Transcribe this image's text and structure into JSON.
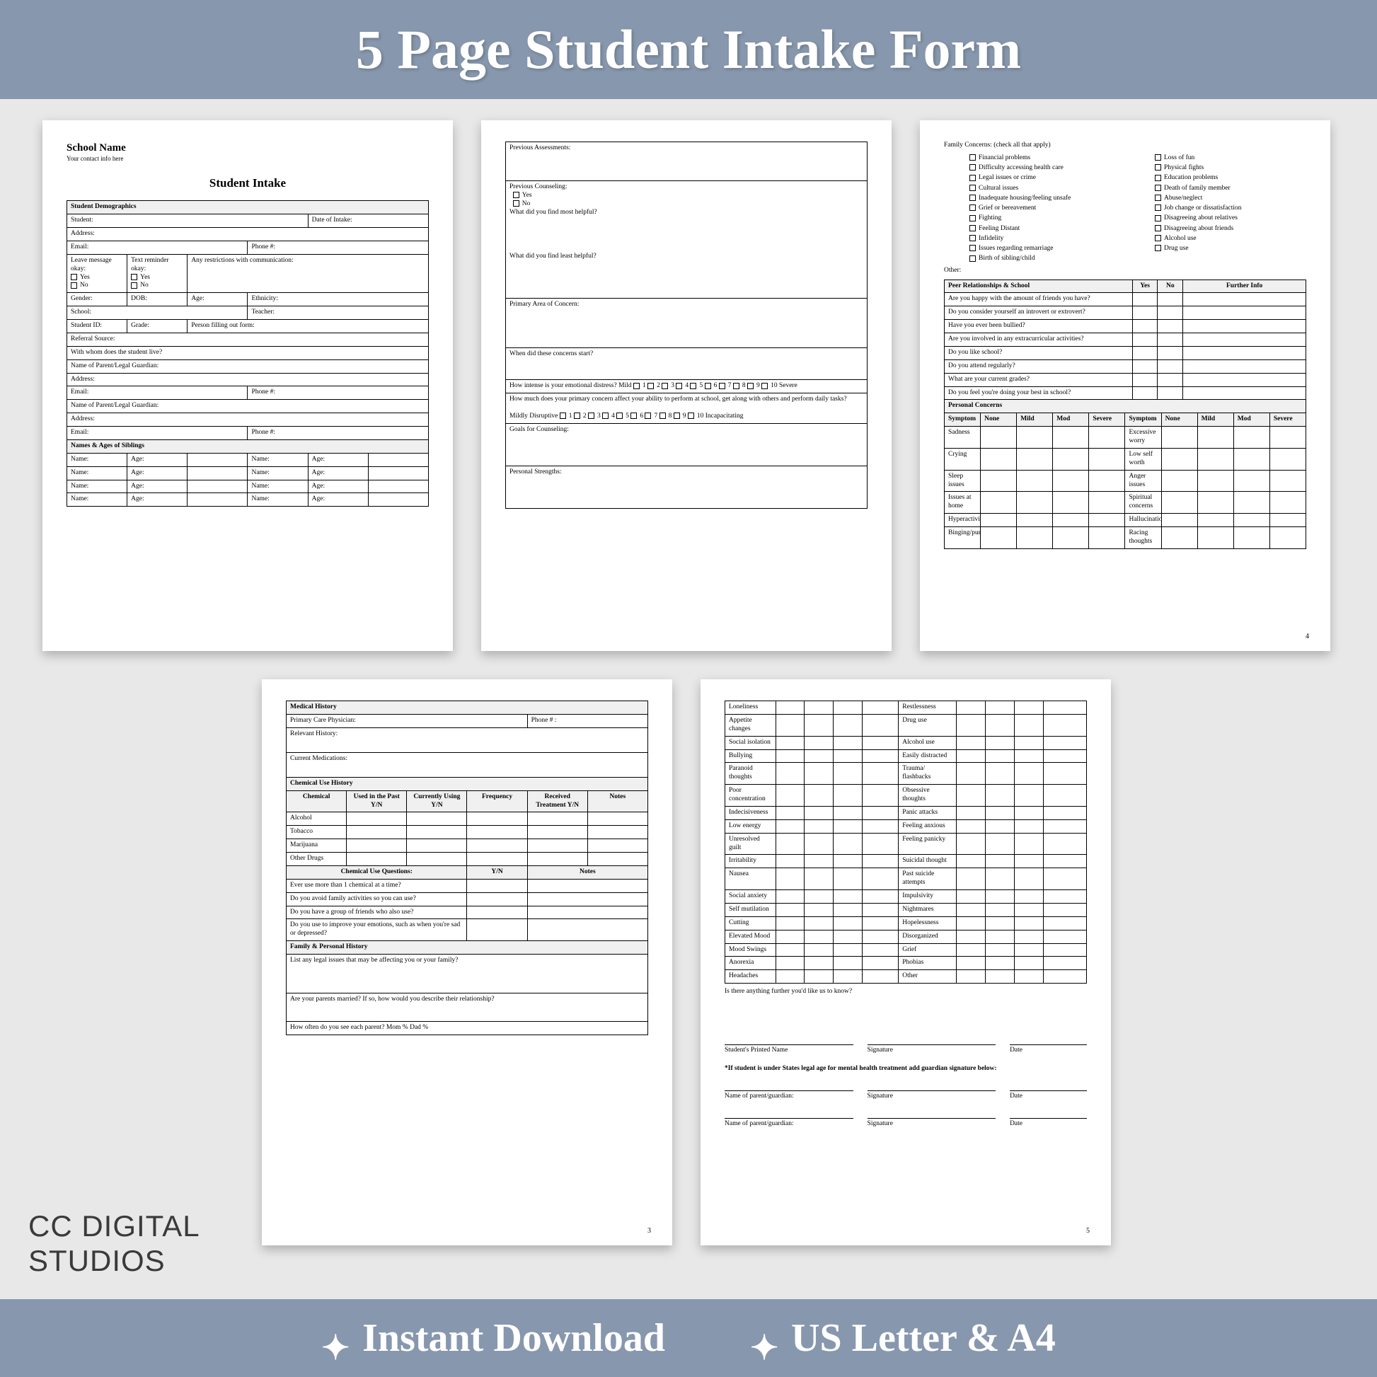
{
  "banner": {
    "top": "5 Page Student Intake Form",
    "bottom_left": "Instant Download",
    "bottom_right": "US Letter & A4",
    "bg": "#8797ad",
    "fg": "#ffffff"
  },
  "brand": {
    "line1": "CC DIGITAL",
    "line2": "STUDIOS"
  },
  "workspace_bg": "#e8e8e8",
  "page1": {
    "school": "School Name",
    "contact": "Your contact info here",
    "title": "Student Intake",
    "section_demo": "Student Demographics",
    "f_student": "Student:",
    "f_doi": "Date of Intake:",
    "f_address": "Address:",
    "f_email": "Email:",
    "f_phone": "Phone #:",
    "f_leave": "Leave message okay:",
    "f_text": "Text reminder okay:",
    "f_restrict": "Any restrictions with communication:",
    "yes": "Yes",
    "no": "No",
    "f_gender": "Gender:",
    "f_dob": "DOB:",
    "f_age": "Age:",
    "f_eth": "Ethnicity:",
    "f_school": "School:",
    "f_teacher": "Teacher:",
    "f_sid": "Student ID:",
    "f_grade": "Grade:",
    "f_filler": "Person filling out form:",
    "f_refsrc": "Referral Source:",
    "f_livewith": "With whom does the student live?",
    "f_guardian": "Name of Parent/Legal Guardian:",
    "section_sibs": "Names & Ages of Siblings",
    "f_name": "Name:"
  },
  "page2": {
    "f_prev_assess": "Previous Assessments:",
    "f_prev_couns": "Previous Counseling:",
    "yes": "Yes",
    "no": "No",
    "f_most": "What did you find most helpful?",
    "f_least": "What did you find least helpful?",
    "f_primary": "Primary Area of Concern:",
    "f_when": "When did these concerns start?",
    "f_intensity": "How intense is your emotional distress?  Mild",
    "f_severe": "Severe",
    "f_affect": "How much does your primary concern affect your ability to perform at school, get along with others and perform daily tasks?",
    "f_mild_dis": "Mildly Disruptive",
    "f_incap": "Incapacitating",
    "f_goals": "Goals for Counseling:",
    "f_strengths": "Personal Strengths:",
    "scale": [
      "1",
      "2",
      "3",
      "4",
      "5",
      "6",
      "7",
      "8",
      "9",
      "10"
    ]
  },
  "page3": {
    "f_family": "Family Concerns: (check all that apply)",
    "col1": [
      "Financial problems",
      "Difficulty accessing health care",
      "Legal issues or crime",
      "Cultural issues",
      "Inadequate housing/feeling unsafe",
      "Grief or bereavement",
      "Fighting",
      "Feeling Distant",
      "Infidelity",
      "Issues regarding remarriage",
      "Birth of sibling/child"
    ],
    "col2": [
      "Loss of fun",
      "Physical fights",
      "Education problems",
      "Death of family member",
      "Abuse/neglect",
      "Job change or dissatisfaction",
      "Disagreeing about relatives",
      "Disagreeing about friends",
      "Alcohol use",
      "Drug use"
    ],
    "other": "Other:",
    "sect_peer": "Peer Relationships & School",
    "h_yes": "Yes",
    "h_no": "No",
    "h_info": "Further Info",
    "peer_qs": [
      "Are you happy with the amount of friends you have?",
      "Do you consider yourself an introvert or extrovert?",
      "Have you ever been bullied?",
      "Are you involved in any extracurricular activities?",
      "Do you like school?",
      "Do you attend regularly?",
      "What are your current grades?",
      "Do you feel you're doing your best in school?"
    ],
    "sect_personal": "Personal Concerns",
    "h_symptom": "Symptom",
    "h_none": "None",
    "h_mild": "Mild",
    "h_mod": "Mod",
    "h_severe": "Severe",
    "sym_rows": [
      [
        "Sadness",
        "Excessive worry"
      ],
      [
        "Crying",
        "Low self worth"
      ],
      [
        "Sleep issues",
        "Anger issues"
      ],
      [
        "Issues at home",
        "Spiritual concerns"
      ],
      [
        "Hyperactivity",
        "Hallucinations"
      ],
      [
        "Binging/purging",
        "Racing thoughts"
      ]
    ],
    "pgnum": "4"
  },
  "page4": {
    "sect_med": "Medical History",
    "f_pcp": "Primary Care Physician:",
    "f_phone": "Phone # :",
    "f_relhist": "Relevant History:",
    "f_meds": "Current Medications:",
    "sect_chem": "Chemical Use History",
    "h_chem": "Chemical",
    "h_past": "Used in the Past Y/N",
    "h_cur": "Currently Using Y/N",
    "h_freq": "Frequency",
    "h_rx": "Received Treatment Y/N",
    "h_notes": "Notes",
    "chems": [
      "Alcohol",
      "Tobacco",
      "Marijuana",
      "Other Drugs"
    ],
    "sect_chemq": "Chemical Use Questions:",
    "h_yn": "Y/N",
    "chem_qs": [
      "Ever use more than 1 chemical at a time?",
      "Do you avoid family activities so you can use?",
      "Do you have a group of friends who also use?",
      "Do you use to improve your emotions, such as when you're sad or depressed?"
    ],
    "sect_fam": "Family & Personal History",
    "f_legal": "List any legal issues that may be affecting you or your family?",
    "f_married": "Are your parents married?          If so, how would you describe their relationship?",
    "f_seeparent": "How often do you see each parent?   Mom    %   Dad    %",
    "pgnum": "3"
  },
  "page5": {
    "sym_rows": [
      [
        "Loneliness",
        "Restlessness"
      ],
      [
        "Appetite changes",
        "Drug use"
      ],
      [
        "Social isolation",
        "Alcohol use"
      ],
      [
        "Bullying",
        "Easily distracted"
      ],
      [
        "Paranoid thoughts",
        "Trauma/ flashbacks"
      ],
      [
        "Poor concentration",
        "Obsessive thoughts"
      ],
      [
        "Indecisiveness",
        "Panic attacks"
      ],
      [
        "Low energy",
        "Feeling anxious"
      ],
      [
        "Unresolved guilt",
        "Feeling panicky"
      ],
      [
        "Irritability",
        "Suicidal thought"
      ],
      [
        "Nausea",
        "Past suicide attempts"
      ],
      [
        "Social anxiety",
        "Impulsivity"
      ],
      [
        "Self mutilation",
        "Nightmares"
      ],
      [
        "Cutting",
        "Hopelessness"
      ],
      [
        "Elevated Mood",
        "Disorganized"
      ],
      [
        "Mood Swings",
        "Grief"
      ],
      [
        "Anorexia",
        "Phobias"
      ],
      [
        "Headaches",
        "Other"
      ]
    ],
    "f_further": "Is there anything further you'd like us to know?",
    "f_printed": "Student's Printed Name",
    "f_sig": "Signature",
    "f_date": "Date",
    "f_minor": "*If student is under States legal age for mental health treatment add guardian signature below:",
    "f_pg": "Name of parent/guardian:",
    "pgnum": "5"
  }
}
